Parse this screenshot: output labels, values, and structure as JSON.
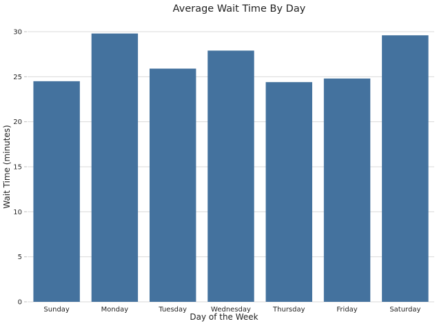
{
  "chart_data": {
    "type": "bar",
    "title": "Average Wait Time By Day",
    "xlabel": "Day of the Week",
    "ylabel": "Wait Time (minutes)",
    "categories": [
      "Sunday",
      "Monday",
      "Tuesday",
      "Wednesday",
      "Thursday",
      "Friday",
      "Saturday"
    ],
    "values": [
      24.5,
      29.8,
      25.9,
      27.9,
      24.4,
      24.8,
      29.6
    ],
    "ylim": [
      0,
      30
    ],
    "yticks": [
      0,
      5,
      10,
      15,
      20,
      25,
      30
    ],
    "grid": true,
    "grid_axis": "y",
    "legend": "none",
    "colors": {
      "bar": "#44729e",
      "grid": "#d9d9d9",
      "axis_text": "#222222"
    }
  }
}
